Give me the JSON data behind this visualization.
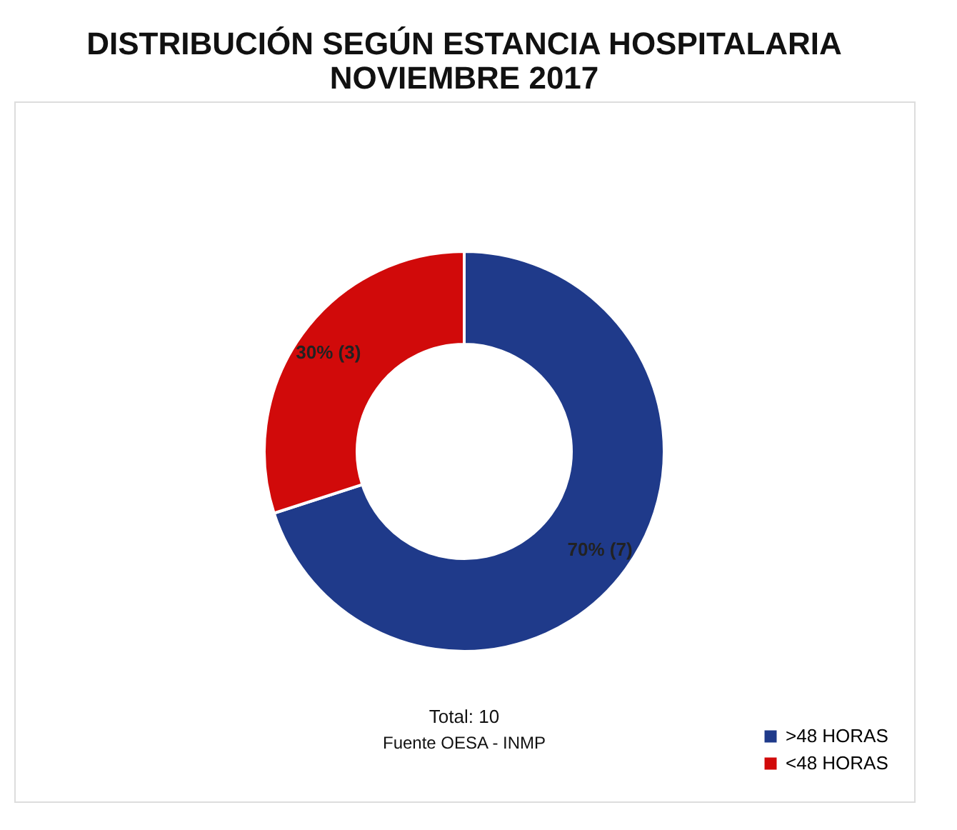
{
  "chart_data": {
    "type": "donut",
    "title": "DISTRIBUCIÓN SEGÚN ESTANCIA HOSPITALARIA\nNOVIEMBRE 2017",
    "categories": [
      ">48 HORAS",
      "<48 HORAS"
    ],
    "values": [
      70,
      30
    ],
    "colors": [
      "#1f3a8a",
      "#d10a0a"
    ],
    "value_labels": [
      "70% (7)",
      "30% (3)"
    ],
    "legend": "bottom right",
    "annotations": [
      "Total: 10",
      "Fuente OESA - INMP"
    ]
  }
}
